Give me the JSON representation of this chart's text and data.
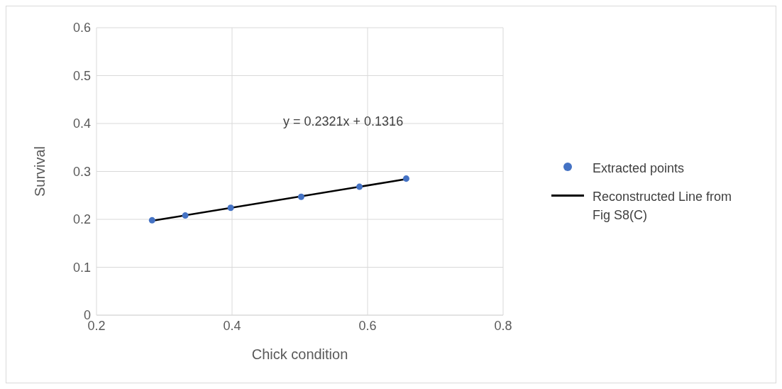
{
  "chart_data": {
    "type": "scatter",
    "xlabel": "Chick condition",
    "ylabel": "Survival",
    "xlim": [
      0.2,
      0.8
    ],
    "xticks": [
      0.2,
      0.4,
      0.6,
      0.8
    ],
    "ylim": [
      0,
      0.6
    ],
    "yticks": [
      0,
      0.1,
      0.2,
      0.3,
      0.4,
      0.5,
      0.6
    ],
    "grid": true,
    "legend": "right",
    "annotations": [
      "y = 0.2321x + 0.1316"
    ],
    "series": [
      {
        "name": "Extracted points",
        "marker": "circle",
        "color": "#4472c4",
        "x": [
          0.282,
          0.331,
          0.398,
          0.502,
          0.588,
          0.657
        ],
        "values": [
          0.198,
          0.208,
          0.224,
          0.247,
          0.268,
          0.285
        ]
      },
      {
        "name": "Reconstructed Line from Fig S8(C)",
        "type": "line",
        "marker": "none",
        "line_style": "solid",
        "color": "#000000",
        "x": [
          0.282,
          0.657
        ],
        "values": [
          0.197,
          0.284
        ]
      }
    ]
  }
}
